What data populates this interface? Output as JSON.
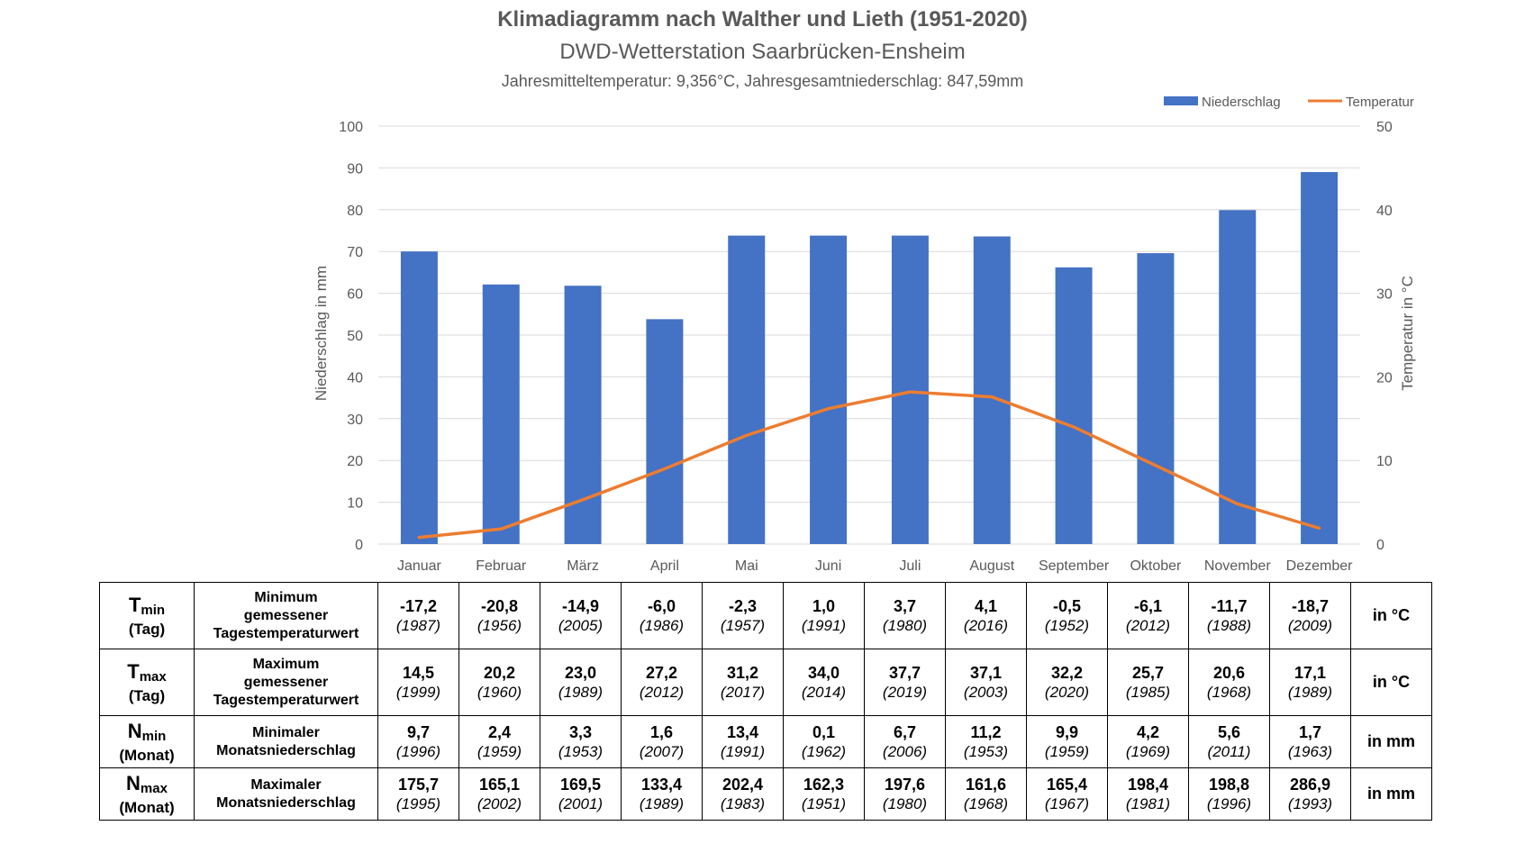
{
  "header": {
    "title": "Klimadiagramm nach Walther und Lieth (1951-2020)",
    "subtitle": "DWD-Wetterstation Saarbrücken-Ensheim",
    "summary": "Jahresmitteltemperatur: 9,356°C, Jahresgesamtniederschlag: 847,59mm"
  },
  "chart_data": {
    "type": "bar+line",
    "categories": [
      "Januar",
      "Februar",
      "März",
      "April",
      "Mai",
      "Juni",
      "Juli",
      "August",
      "September",
      "Oktober",
      "November",
      "Dezember"
    ],
    "series": [
      {
        "name": "Niederschlag",
        "type": "bar",
        "axis": "left",
        "color": "#4472C4",
        "values": [
          70.0,
          62.1,
          61.8,
          53.8,
          73.8,
          73.8,
          73.8,
          73.6,
          66.2,
          69.6,
          79.9,
          89.0
        ]
      },
      {
        "name": "Temperatur",
        "type": "line",
        "axis": "right",
        "color": "#ED7D31",
        "values": [
          0.8,
          1.8,
          5.3,
          9.0,
          13.0,
          16.2,
          18.2,
          17.6,
          14.0,
          9.4,
          4.8,
          1.9
        ]
      }
    ],
    "ylabel": "Niederschlag in mm",
    "y2label": "Temperatur in °C",
    "ylim": [
      0,
      100
    ],
    "y2lim": [
      0,
      50
    ],
    "yticks": [
      "0",
      "10",
      "20",
      "30",
      "40",
      "50",
      "60",
      "70",
      "80",
      "90",
      "100"
    ],
    "y2ticks": [
      "0",
      "10",
      "20",
      "30",
      "40",
      "50"
    ],
    "legend": [
      "Niederschlag",
      "Temperatur"
    ],
    "legend_position": "top-right",
    "grid": true
  },
  "table": {
    "rows": [
      {
        "sym": "T",
        "sub": "min",
        "period": "(Tag)",
        "desc": [
          "Minimum",
          "gemessener",
          "Tagestemperaturwert"
        ],
        "unit": "in °C",
        "values": [
          "-17,2",
          "-20,8",
          "-14,9",
          "-6,0",
          "-2,3",
          "1,0",
          "3,7",
          "4,1",
          "-0,5",
          "-6,1",
          "-11,7",
          "-18,7"
        ],
        "years": [
          "(1987)",
          "(1956)",
          "(2005)",
          "(1986)",
          "(1957)",
          "(1991)",
          "(1980)",
          "(2016)",
          "(1952)",
          "(2012)",
          "(1988)",
          "(2009)"
        ]
      },
      {
        "sym": "T",
        "sub": "max",
        "period": "(Tag)",
        "desc": [
          "Maximum",
          "gemessener",
          "Tagestemperaturwert"
        ],
        "unit": "in °C",
        "values": [
          "14,5",
          "20,2",
          "23,0",
          "27,2",
          "31,2",
          "34,0",
          "37,7",
          "37,1",
          "32,2",
          "25,7",
          "20,6",
          "17,1"
        ],
        "years": [
          "(1999)",
          "(1960)",
          "(1989)",
          "(2012)",
          "(2017)",
          "(2014)",
          "(2019)",
          "(2003)",
          "(2020)",
          "(1985)",
          "(1968)",
          "(1989)"
        ]
      },
      {
        "sym": "N",
        "sub": "min",
        "period": "(Monat)",
        "desc": [
          "Minimaler",
          "Monatsniederschlag"
        ],
        "unit": "in mm",
        "values": [
          "9,7",
          "2,4",
          "3,3",
          "1,6",
          "13,4",
          "0,1",
          "6,7",
          "11,2",
          "9,9",
          "4,2",
          "5,6",
          "1,7"
        ],
        "years": [
          "(1996)",
          "(1959)",
          "(1953)",
          "(2007)",
          "(1991)",
          "(1962)",
          "(2006)",
          "(1953)",
          "(1959)",
          "(1969)",
          "(2011)",
          "(1963)"
        ]
      },
      {
        "sym": "N",
        "sub": "max",
        "period": "(Monat)",
        "desc": [
          "Maximaler",
          "Monatsniederschlag"
        ],
        "unit": "in mm",
        "values": [
          "175,7",
          "165,1",
          "169,5",
          "133,4",
          "202,4",
          "162,3",
          "197,6",
          "161,6",
          "165,4",
          "198,4",
          "198,8",
          "286,9"
        ],
        "years": [
          "(1995)",
          "(2002)",
          "(2001)",
          "(1989)",
          "(1983)",
          "(1951)",
          "(1980)",
          "(1968)",
          "(1967)",
          "(1981)",
          "(1996)",
          "(1993)"
        ]
      }
    ]
  }
}
